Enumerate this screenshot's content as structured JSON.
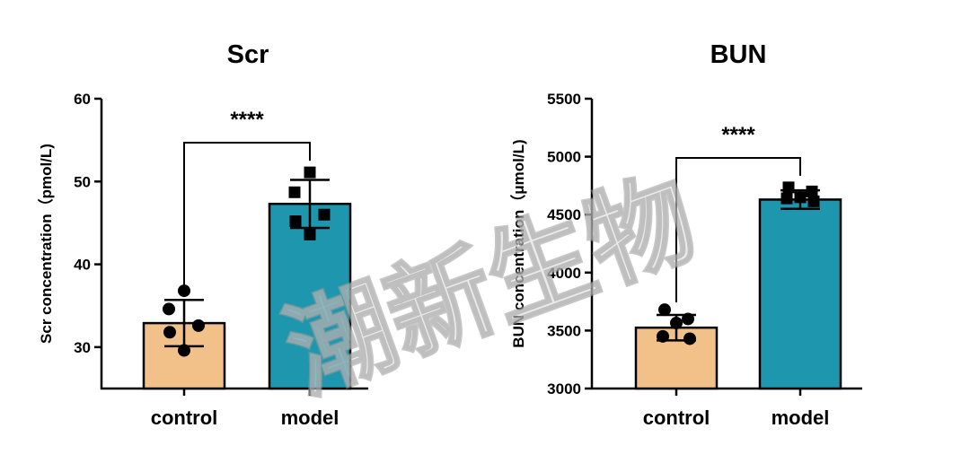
{
  "watermark": "潮新生物",
  "colors": {
    "control": "#F2C18A",
    "model": "#1E97AE",
    "ink": "#000000"
  },
  "chart_data": [
    {
      "type": "bar",
      "title": "Scr",
      "ylabel": "Scr concentration（pmol/L)",
      "xlabel": "",
      "categories": [
        "control",
        "model"
      ],
      "values": [
        32.9,
        47.3
      ],
      "sd": [
        2.8,
        2.9
      ],
      "points": [
        [
          36.8,
          34.6,
          32.6,
          31.8,
          29.6
        ],
        [
          51.1,
          48.7,
          46.0,
          45.2,
          43.6
        ]
      ],
      "ylim": [
        25,
        60
      ],
      "yticks": [
        30,
        40,
        50,
        60
      ],
      "significance": "****",
      "grid": false,
      "legend": "none"
    },
    {
      "type": "bar",
      "title": "BUN",
      "ylabel": "BUN concentration（μmol/L)",
      "xlabel": "",
      "categories": [
        "control",
        "model"
      ],
      "values": [
        3525,
        4630
      ],
      "sd": [
        110,
        80
      ],
      "points": [
        [
          3680,
          3600,
          3565,
          3450,
          3430
        ],
        [
          4735,
          4700,
          4650,
          4640,
          4615
        ]
      ],
      "ylim": [
        3000,
        5500
      ],
      "yticks": [
        3000,
        3500,
        4000,
        4500,
        5000,
        5500
      ],
      "significance": "****",
      "grid": false,
      "legend": "none"
    }
  ]
}
